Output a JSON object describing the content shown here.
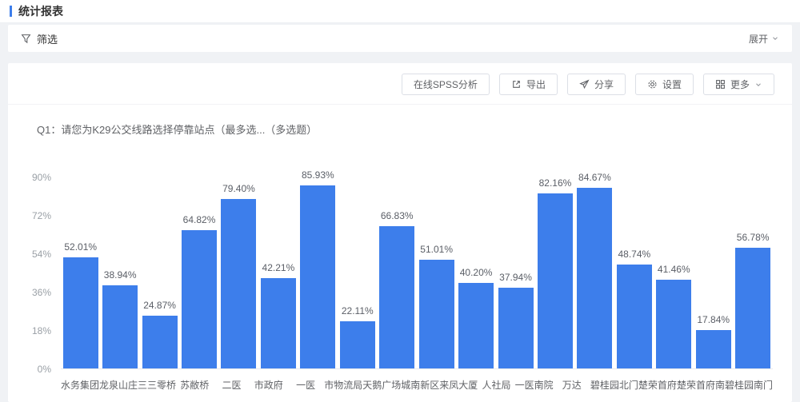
{
  "page": {
    "title": "统计报表",
    "accent_color": "#3d7eeb"
  },
  "filter_bar": {
    "label": "筛选",
    "filter_icon": "filter-icon",
    "expand_label": "展开",
    "expand_icon": "chevron-down-icon"
  },
  "toolbar": {
    "buttons": [
      {
        "name": "online-spss-button",
        "label": "在线SPSS分析",
        "icon": null,
        "chevron": false
      },
      {
        "name": "export-button",
        "label": "导出",
        "icon": "export-icon",
        "chevron": false
      },
      {
        "name": "share-button",
        "label": "分享",
        "icon": "share-icon",
        "chevron": false
      },
      {
        "name": "settings-button",
        "label": "设置",
        "icon": "gear-icon",
        "chevron": false
      },
      {
        "name": "more-button",
        "label": "更多",
        "icon": "grid-icon",
        "chevron": true
      }
    ]
  },
  "question": {
    "title": "Q1：请您为K29公交线路选择停靠站点（最多选...（多选题）"
  },
  "chart_data": {
    "type": "bar",
    "title": "",
    "xlabel": "",
    "ylabel": "",
    "categories": [
      "水务集团",
      "龙泉山庄",
      "三三零桥",
      "苏敝桥",
      "二医",
      "市政府",
      "一医",
      "市物流局",
      "天鹅广场",
      "城南新区",
      "来凤大厦",
      "人社局",
      "一医南院",
      "万达",
      "碧桂园北门",
      "楚荣首府",
      "楚荣首府南",
      "碧桂园南门"
    ],
    "values": [
      52.01,
      38.94,
      24.87,
      64.82,
      79.4,
      42.21,
      85.93,
      22.11,
      66.83,
      51.01,
      40.2,
      37.94,
      82.16,
      84.67,
      48.74,
      41.46,
      17.84,
      56.78
    ],
    "value_labels": [
      "52.01%",
      "38.94%",
      "24.87%",
      "64.82%",
      "79.40%",
      "42.21%",
      "85.93%",
      "22.11%",
      "66.83%",
      "51.01%",
      "40.20%",
      "37.94%",
      "82.16%",
      "84.67%",
      "48.74%",
      "41.46%",
      "17.84%",
      "56.78%"
    ],
    "y_ticks": [
      "0%",
      "18%",
      "36%",
      "54%",
      "72%",
      "90%"
    ],
    "ylim": [
      0,
      90
    ],
    "grid": false,
    "legend": false,
    "bar_color": "#3d7eeb"
  }
}
